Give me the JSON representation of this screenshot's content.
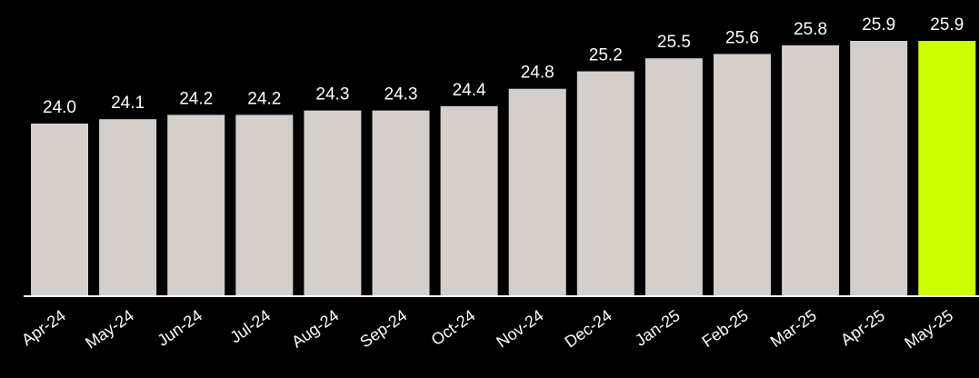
{
  "chart_data": {
    "type": "bar",
    "categories": [
      "Apr-24",
      "May-24",
      "Jun-24",
      "Jul-24",
      "Aug-24",
      "Sep-24",
      "Oct-24",
      "Nov-24",
      "Dec-24",
      "Jan-25",
      "Feb-25",
      "Mar-25",
      "Apr-25",
      "May-25"
    ],
    "values": [
      24.0,
      24.1,
      24.2,
      24.2,
      24.3,
      24.3,
      24.4,
      24.8,
      25.2,
      25.5,
      25.6,
      25.8,
      25.9,
      25.9
    ],
    "value_labels": [
      "24.0",
      "24.1",
      "24.2",
      "24.2",
      "24.3",
      "24.3",
      "24.4",
      "24.8",
      "25.2",
      "25.5",
      "25.6",
      "25.8",
      "25.9",
      "25.9"
    ],
    "title": "",
    "xlabel": "",
    "ylabel": "",
    "highlight_index": 13,
    "grid": false,
    "legend": "none",
    "colors": {
      "background": "#000000",
      "bar": "#d4cfca",
      "highlight": "#ccff00",
      "text": "#ffffff",
      "axis": "#ffffff"
    }
  }
}
